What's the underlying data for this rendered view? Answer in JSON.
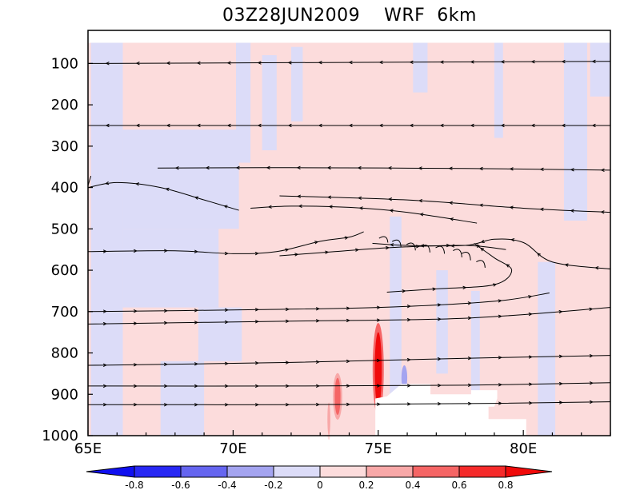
{
  "chart_data": {
    "type": "heatmap",
    "title": "03Z28JUN2009    WRF  6km",
    "x_axis": {
      "range": [
        65,
        83
      ],
      "ticks": [
        65,
        70,
        75,
        80
      ],
      "tick_labels": [
        "65E",
        "70E",
        "75E",
        "80E"
      ]
    },
    "y_axis": {
      "range": [
        1000,
        20
      ],
      "inverted": true,
      "ticks": [
        100,
        200,
        300,
        400,
        500,
        600,
        700,
        800,
        900,
        1000
      ],
      "tick_labels": [
        "100",
        "200",
        "300",
        "400",
        "500",
        "600",
        "700",
        "800",
        "900",
        "1000"
      ]
    },
    "colorbar": {
      "levels": [
        -0.8,
        -0.6,
        -0.4,
        -0.2,
        0,
        0.2,
        0.4,
        0.6,
        0.8
      ],
      "labels": [
        "-0.8",
        "-0.6",
        "-0.4",
        "-0.2",
        "0",
        "0.2",
        "0.4",
        "0.6",
        "0.8"
      ],
      "colors": [
        "#1010f0",
        "#2828f4",
        "#6565f0",
        "#a4a4f0",
        "#dcdcf8",
        "#fcdcdc",
        "#f8a8a8",
        "#f56565",
        "#f52a2a",
        "#f00a0a"
      ]
    },
    "background_colors": {
      "positive": "#fcdcdc",
      "negative": "#dcdcf8",
      "terrain": "#ffffff"
    },
    "negative_regions": [
      {
        "x": [
          65.1,
          66.2
        ],
        "y": [
          50,
          1000
        ]
      },
      {
        "x": [
          66.2,
          70.2
        ],
        "y": [
          260,
          500
        ]
      },
      {
        "x": [
          66.2,
          69.5
        ],
        "y": [
          500,
          690
        ]
      },
      {
        "x": [
          68.8,
          70.3
        ],
        "y": [
          690,
          820
        ]
      },
      {
        "x": [
          67.5,
          69.0
        ],
        "y": [
          820,
          1000
        ]
      },
      {
        "x": [
          70.1,
          70.6
        ],
        "y": [
          50,
          340
        ]
      },
      {
        "x": [
          71.0,
          71.5
        ],
        "y": [
          80,
          310
        ]
      },
      {
        "x": [
          72.0,
          72.4
        ],
        "y": [
          60,
          240
        ]
      },
      {
        "x": [
          76.2,
          76.7
        ],
        "y": [
          50,
          170
        ]
      },
      {
        "x": [
          75.4,
          75.8
        ],
        "y": [
          470,
          930
        ]
      },
      {
        "x": [
          77.0,
          77.4
        ],
        "y": [
          600,
          850
        ]
      },
      {
        "x": [
          78.2,
          78.5
        ],
        "y": [
          650,
          900
        ]
      },
      {
        "x": [
          79.0,
          79.3
        ],
        "y": [
          50,
          280
        ]
      },
      {
        "x": [
          80.5,
          81.1
        ],
        "y": [
          580,
          1000
        ]
      },
      {
        "x": [
          81.4,
          82.2
        ],
        "y": [
          50,
          480
        ]
      },
      {
        "x": [
          82.3,
          83.0
        ],
        "y": [
          50,
          180
        ]
      }
    ],
    "positive_cores": [
      {
        "x": 75.0,
        "y": 840,
        "dx": 0.12,
        "dy": 90,
        "value": 0.8
      },
      {
        "x": 73.6,
        "y": 905,
        "dx": 0.1,
        "dy": 45,
        "value": 0.5
      },
      {
        "x": 73.3,
        "y": 960,
        "dx": 0.05,
        "dy": 40,
        "value": 0.3
      }
    ],
    "negative_cores": [
      {
        "x": 75.9,
        "y": 860,
        "dx": 0.1,
        "dy": 30,
        "value": -0.4
      }
    ],
    "terrain_mask": [
      [
        74.9,
        1000
      ],
      [
        74.9,
        910
      ],
      [
        75.3,
        905
      ],
      [
        75.8,
        875
      ],
      [
        76.8,
        875
      ],
      [
        76.8,
        900
      ],
      [
        78.2,
        900
      ],
      [
        78.2,
        890
      ],
      [
        79.1,
        890
      ],
      [
        79.1,
        910
      ],
      [
        79.0,
        930
      ],
      [
        78.8,
        930
      ],
      [
        78.8,
        960
      ],
      [
        80.1,
        960
      ],
      [
        80.1,
        1000
      ]
    ],
    "streamlines": [
      {
        "points": [
          [
            65,
            100
          ],
          [
            83,
            95
          ]
        ],
        "direction": "west"
      },
      {
        "points": [
          [
            65,
            250
          ],
          [
            83,
            250
          ]
        ],
        "direction": "west"
      },
      {
        "points": [
          [
            67.4,
            353
          ],
          [
            72,
            352
          ],
          [
            78,
            354
          ],
          [
            83,
            358
          ]
        ],
        "direction": "west"
      },
      {
        "points": [
          [
            65,
            395
          ],
          [
            65.1,
            372
          ]
        ],
        "direction": "west"
      },
      {
        "points": [
          [
            65,
            400
          ],
          [
            66,
            388
          ],
          [
            67.5,
            400
          ],
          [
            69,
            430
          ],
          [
            70.2,
            455
          ]
        ],
        "direction": "west"
      },
      {
        "points": [
          [
            70.6,
            450
          ],
          [
            72,
            445
          ],
          [
            74,
            448
          ],
          [
            76,
            460
          ],
          [
            78.4,
            486
          ]
        ],
        "direction": "west"
      },
      {
        "points": [
          [
            71.6,
            420
          ],
          [
            76,
            430
          ],
          [
            80,
            450
          ],
          [
            83,
            460
          ]
        ],
        "direction": "west"
      },
      {
        "points": [
          [
            65,
            555
          ],
          [
            68,
            553
          ],
          [
            70,
            560
          ],
          [
            71.5,
            555
          ],
          [
            73,
            530
          ],
          [
            74,
            520
          ],
          [
            74.5,
            507
          ]
        ],
        "direction": "east"
      },
      {
        "points": [
          [
            71.6,
            565
          ],
          [
            73.5,
            555
          ],
          [
            75.5,
            545
          ],
          [
            78,
            540
          ],
          [
            79.4,
            550
          ]
        ],
        "direction": "east"
      },
      {
        "points": [
          [
            74.8,
            535
          ],
          [
            76,
            540
          ],
          [
            78,
            540
          ],
          [
            79,
            525
          ],
          [
            80,
            533
          ],
          [
            81,
            580
          ],
          [
            83,
            597
          ]
        ],
        "direction": "west"
      },
      {
        "points": [
          [
            75.3,
            653
          ],
          [
            77,
            645
          ],
          [
            79,
            635
          ],
          [
            79.6,
            600
          ],
          [
            79,
            570
          ],
          [
            78.3,
            535
          ]
        ],
        "direction": "east"
      },
      {
        "points": [
          [
            65,
            700
          ],
          [
            70,
            696
          ],
          [
            75,
            690
          ],
          [
            79,
            675
          ],
          [
            80.9,
            655
          ]
        ],
        "direction": "east"
      },
      {
        "points": [
          [
            65,
            730
          ],
          [
            72,
            723
          ],
          [
            78,
            716
          ],
          [
            83,
            690
          ]
        ],
        "direction": "east"
      },
      {
        "points": [
          [
            65,
            830
          ],
          [
            72,
            823
          ],
          [
            78,
            813
          ],
          [
            83,
            806
          ]
        ],
        "direction": "east"
      },
      {
        "points": [
          [
            65,
            880
          ],
          [
            72,
            880
          ],
          [
            78,
            878
          ],
          [
            83,
            872
          ]
        ],
        "direction": "east"
      },
      {
        "points": [
          [
            65,
            925
          ],
          [
            72,
            925
          ],
          [
            79,
            922
          ],
          [
            83,
            918
          ]
        ],
        "direction": "east"
      }
    ],
    "hooks": [
      [
        75.25,
        515,
        18
      ],
      [
        75.7,
        523,
        20
      ],
      [
        76.2,
        530,
        22
      ],
      [
        76.7,
        535,
        22
      ],
      [
        77.2,
        538,
        22
      ],
      [
        77.8,
        545,
        24
      ],
      [
        78.1,
        552,
        24
      ],
      [
        78.6,
        572,
        22
      ]
    ]
  }
}
